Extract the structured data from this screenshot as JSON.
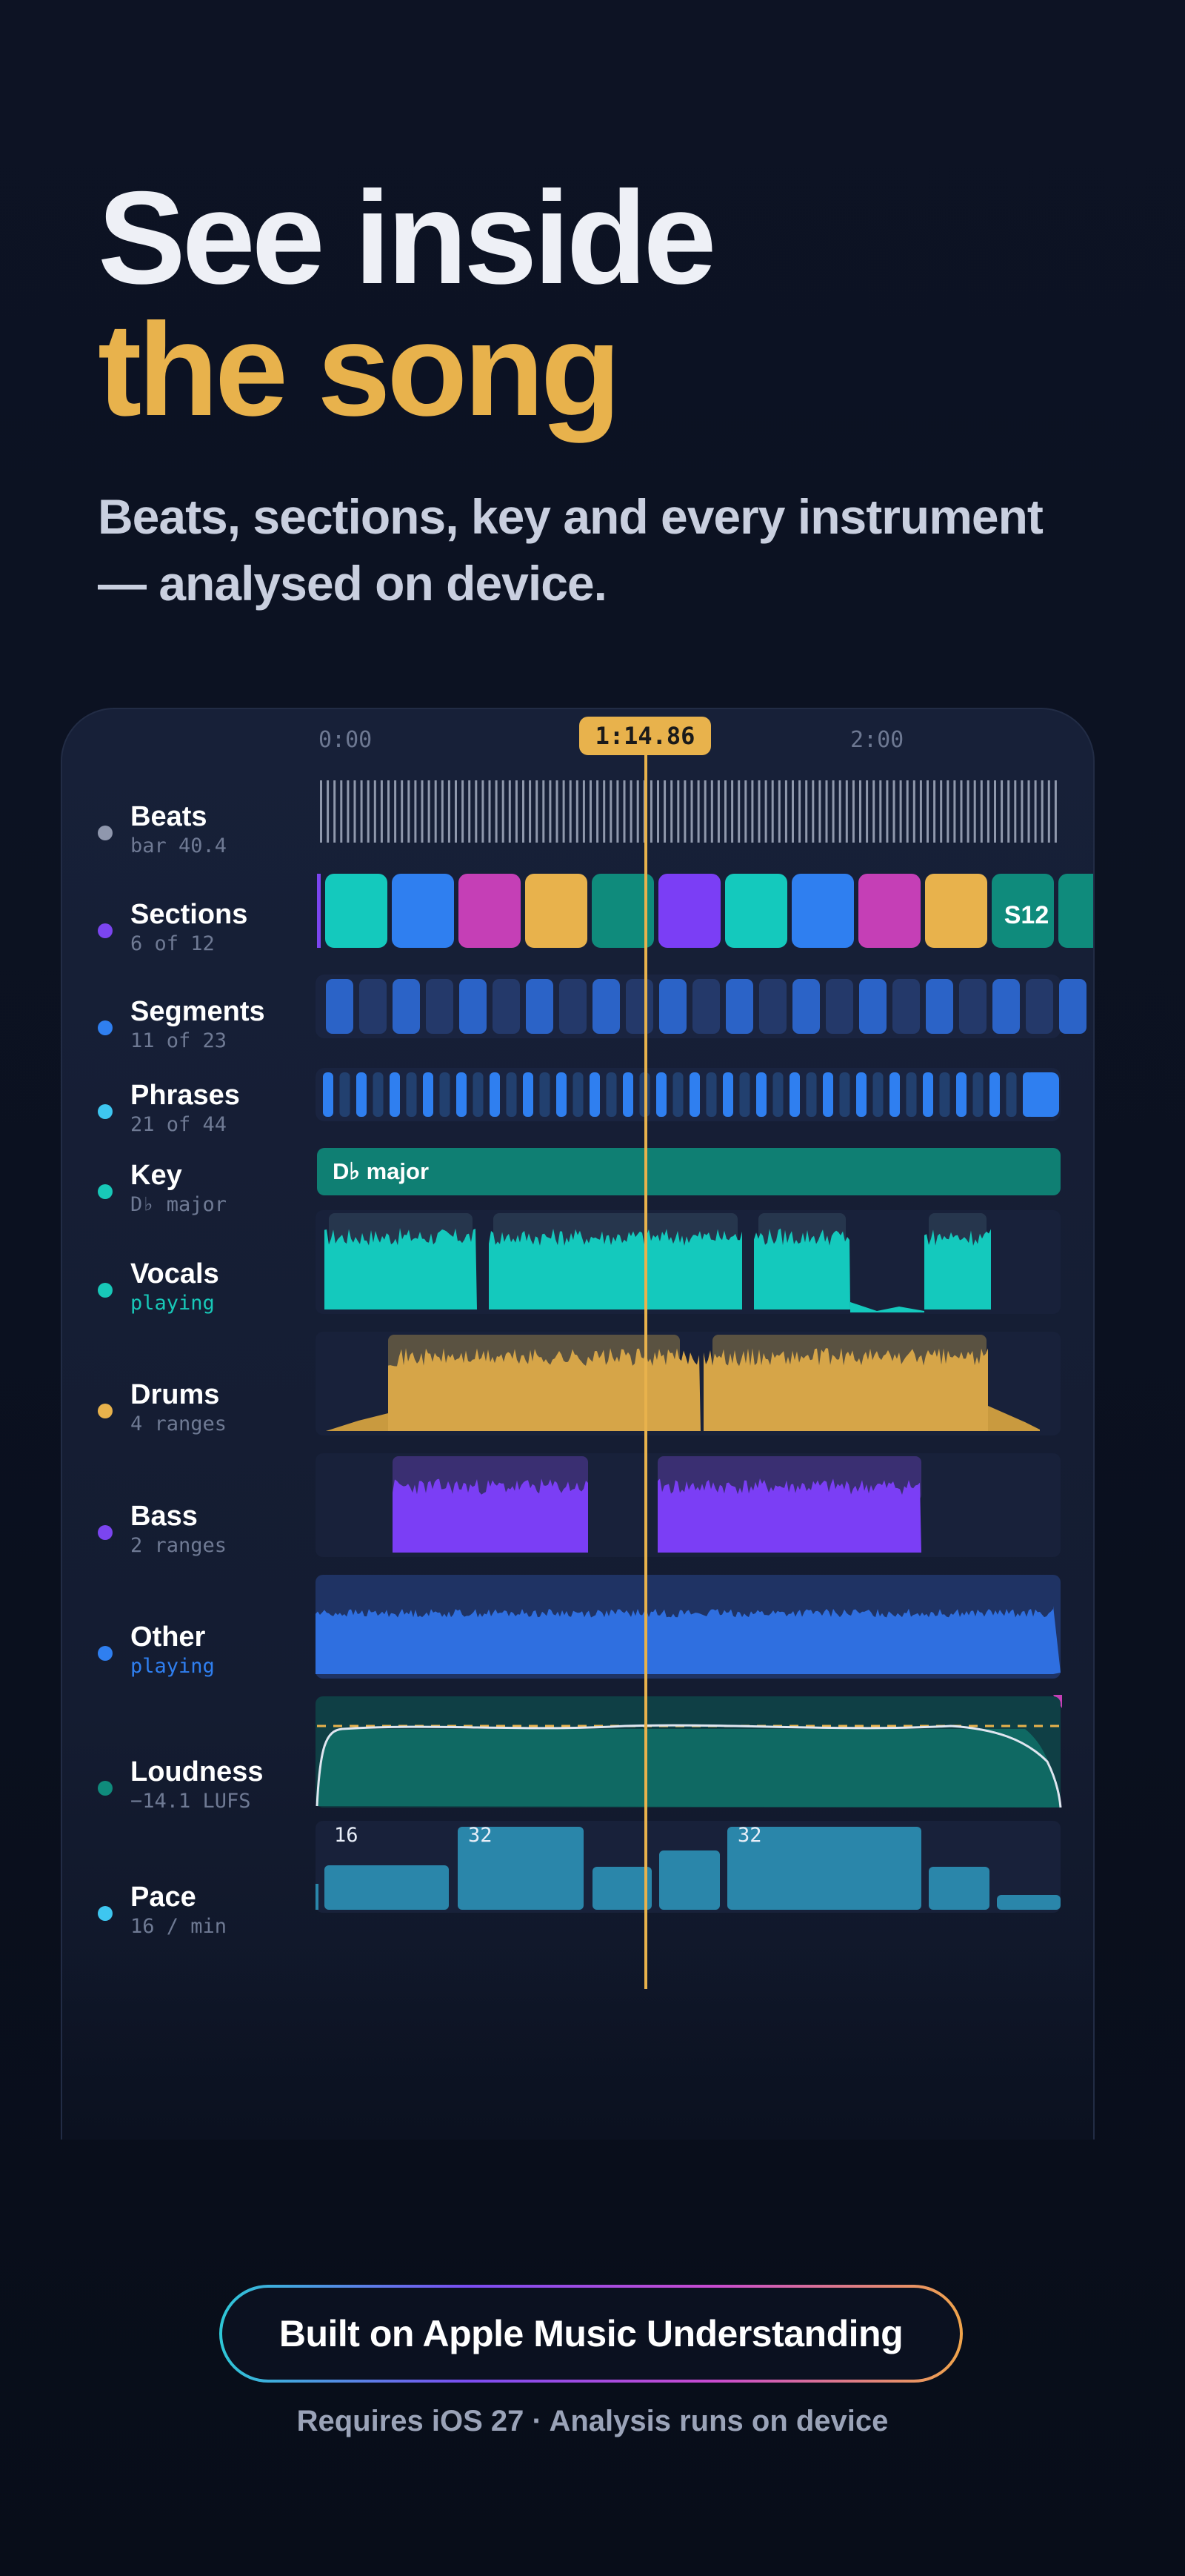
{
  "hero": {
    "line1": "See inside",
    "line2": "the song",
    "subtitle": "Beats, sections, key and every instrument — analysed on device."
  },
  "timeline": {
    "start": "0:00",
    "mid": "2:00",
    "playhead": "1:14.86",
    "playhead_fraction": 0.438
  },
  "tracks": [
    {
      "label": "Beats",
      "sub": "bar 40.4",
      "dot": "#8f97ad",
      "sub_color": "#6f7a94"
    },
    {
      "label": "Sections",
      "sub": "6 of 12",
      "dot": "#7b45f0",
      "sub_color": "#6f7a94"
    },
    {
      "label": "Segments",
      "sub": "11 of 23",
      "dot": "#2f7ff0",
      "sub_color": "#6f7a94"
    },
    {
      "label": "Phrases",
      "sub": "21 of 44",
      "dot": "#3ec6f0",
      "sub_color": "#6f7a94"
    },
    {
      "label": "Key",
      "sub": "D♭ major",
      "dot": "#18c8b8",
      "sub_color": "#6f7a94"
    },
    {
      "label": "Vocals",
      "sub": "playing",
      "dot": "#18c8b8",
      "sub_color": "#18c8b8"
    },
    {
      "label": "Drums",
      "sub": "4 ranges",
      "dot": "#e8b24c",
      "sub_color": "#6f7a94"
    },
    {
      "label": "Bass",
      "sub": "2 ranges",
      "dot": "#7b45f0",
      "sub_color": "#6f7a94"
    },
    {
      "label": "Other",
      "sub": "playing",
      "dot": "#2f7ff0",
      "sub_color": "#2f7ff0"
    },
    {
      "label": "Loudness",
      "sub": "−14.1 LUFS",
      "dot": "#0f8b7c",
      "sub_color": "#6f7a94"
    },
    {
      "label": "Pace",
      "sub": "16 / min",
      "dot": "#3ec6f0",
      "sub_color": "#6f7a94"
    }
  ],
  "sections": {
    "colors": [
      "#14c9bd",
      "#2f7ff0",
      "#c53fb6",
      "#e8b24c",
      "#0f8b7c",
      "#7b3ef5",
      "#14c9bd",
      "#2f7ff0",
      "#c53fb6",
      "#e8b24c",
      "#0f8b7c"
    ],
    "last_label": "S12",
    "last_color": "#0f8b7c"
  },
  "key": {
    "label": "D♭ major",
    "color": "#0f7f73"
  },
  "pace": {
    "labels": [
      "16",
      "32",
      "32"
    ]
  },
  "cta": {
    "label": "Built on Apple Music Understanding"
  },
  "footer": "Requires iOS 27 · Analysis runs on device",
  "colors": {
    "accent": "#e8b24c",
    "bg": "#0b1120",
    "card": "#151d33"
  }
}
